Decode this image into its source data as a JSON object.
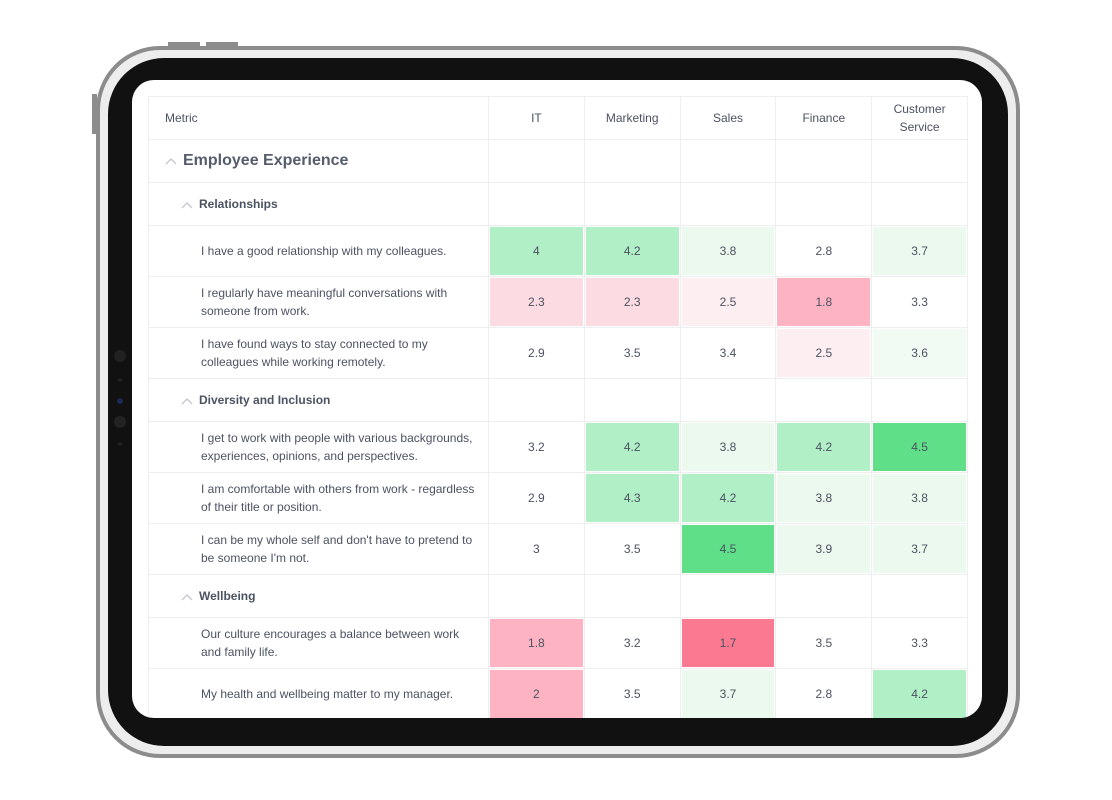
{
  "table": {
    "columns": [
      "Metric",
      "IT",
      "Marketing",
      "Sales",
      "Finance",
      "Customer Service"
    ],
    "section": {
      "title": "Employee Experience",
      "groups": [
        {
          "title": "Relationships",
          "rows": [
            {
              "label": "I have a good relationship with my colleagues.",
              "values": [
                4,
                4.2,
                3.8,
                2.8,
                3.7
              ]
            },
            {
              "label": "I regularly have meaningful conversations with someone from work.",
              "values": [
                2.3,
                2.3,
                2.5,
                1.8,
                3.3
              ]
            },
            {
              "label": "I have found ways to stay connected to my colleagues while working remotely.",
              "values": [
                2.9,
                3.5,
                3.4,
                2.5,
                3.6
              ]
            }
          ]
        },
        {
          "title": "Diversity and Inclusion",
          "rows": [
            {
              "label": "I get to work with people with various backgrounds, experiences, opinions, and perspectives.",
              "values": [
                3.2,
                4.2,
                3.8,
                4.2,
                4.5
              ]
            },
            {
              "label": "I am comfortable with others from work - regardless of their title or position.",
              "values": [
                2.9,
                4.3,
                4.2,
                3.8,
                3.8
              ]
            },
            {
              "label": "I can be my whole self and don't have to pretend to be someone I'm not.",
              "values": [
                3,
                3.5,
                4.5,
                3.9,
                3.7
              ]
            }
          ]
        },
        {
          "title": "Wellbeing",
          "rows": [
            {
              "label": "Our culture encourages a balance between work and family life.",
              "values": [
                1.8,
                3.2,
                1.7,
                3.5,
                3.3
              ]
            },
            {
              "label": "My health and wellbeing matter to my manager.",
              "values": [
                2,
                3.5,
                3.7,
                2.8,
                4.2
              ]
            }
          ]
        }
      ]
    }
  }
}
